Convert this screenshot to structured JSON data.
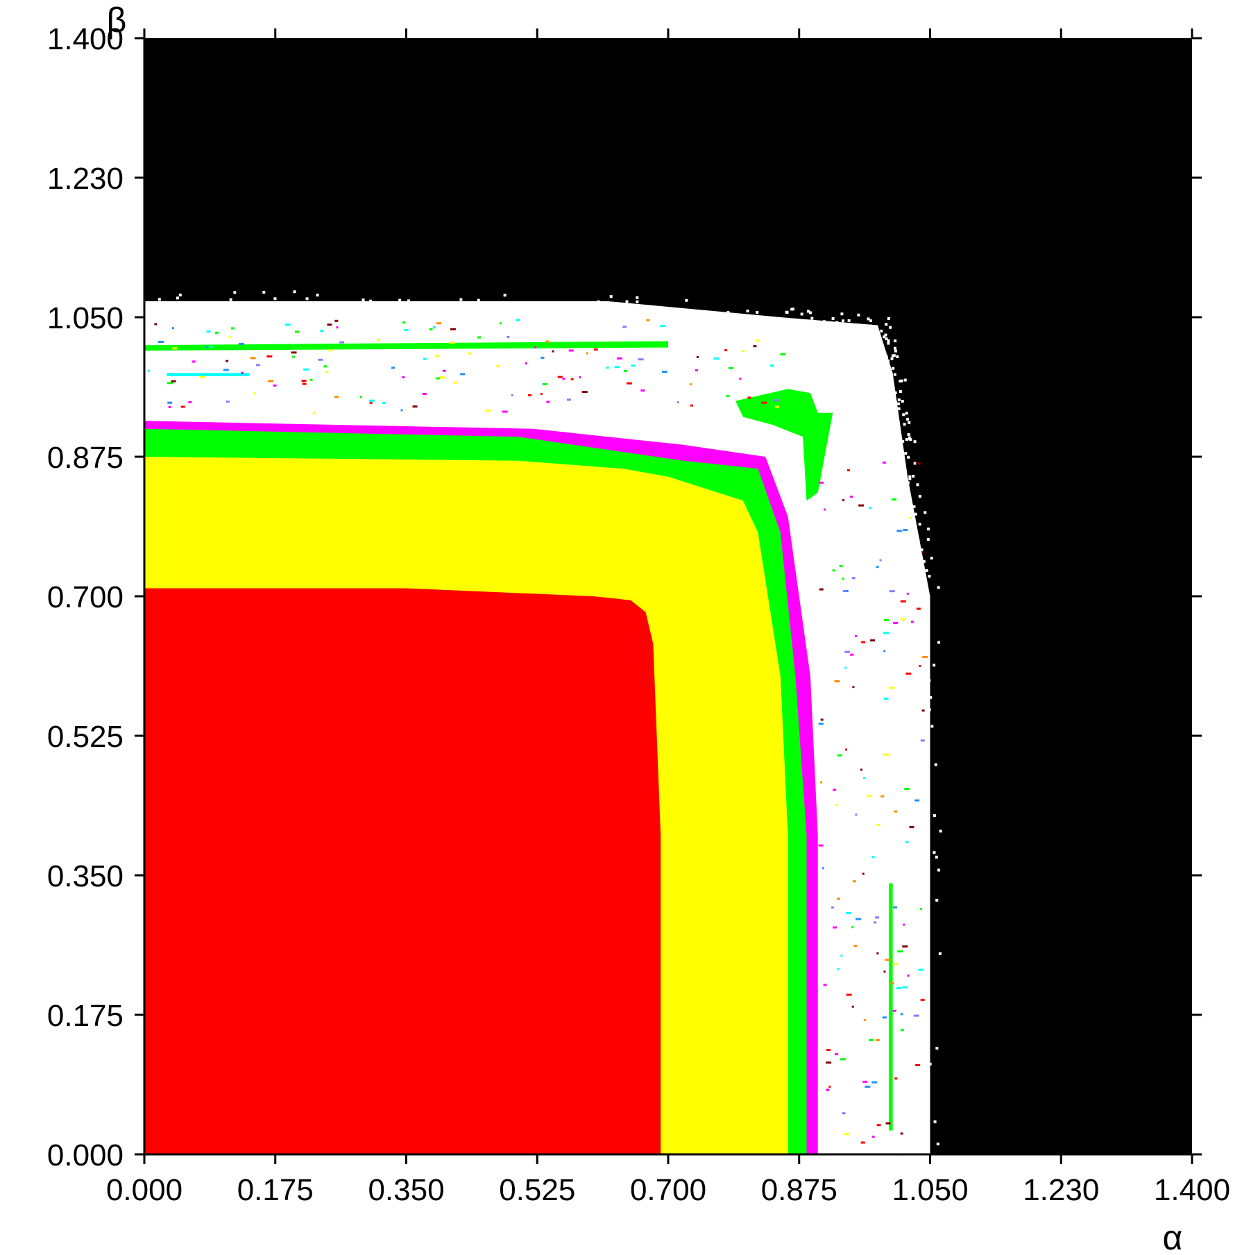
{
  "chart_data": {
    "type": "heatmap",
    "title": "",
    "xlabel": "α",
    "ylabel": "β",
    "xlim": [
      0,
      1.4
    ],
    "ylim": [
      0,
      1.4
    ],
    "xticks": [
      "0.000",
      "0.175",
      "0.350",
      "0.525",
      "0.700",
      "0.875",
      "1.050",
      "1.230",
      "1.400"
    ],
    "yticks": [
      "0.000",
      "0.175",
      "0.350",
      "0.525",
      "0.700",
      "0.875",
      "1.050",
      "1.230",
      "1.400"
    ],
    "grid": false,
    "legend": "none",
    "colors": {
      "background": "#000000",
      "outer_region": "#ffffff",
      "band_magenta": "#ff00ff",
      "band_green": "#00ff00",
      "band_yellow": "#ffff00",
      "core_red": "#ff0000",
      "scatter_palette": [
        "#00ffff",
        "#1e90ff",
        "#ff8c00",
        "#ff0000",
        "#00ff00",
        "#ffff00",
        "#ff00ff",
        "#8080ff",
        "#800000"
      ]
    },
    "regions": [
      {
        "name": "white",
        "color": "#ffffff",
        "boundary": [
          [
            0,
            1.07
          ],
          [
            0.62,
            1.07
          ],
          [
            0.85,
            1.05
          ],
          [
            0.98,
            1.04
          ],
          [
            1.0,
            0.98
          ],
          [
            1.02,
            0.85
          ],
          [
            1.05,
            0.7
          ],
          [
            1.05,
            0
          ]
        ]
      },
      {
        "name": "magenta",
        "color": "#ff00ff",
        "boundary": [
          [
            0,
            0.92
          ],
          [
            0.52,
            0.91
          ],
          [
            0.72,
            0.89
          ],
          [
            0.83,
            0.875
          ],
          [
            0.86,
            0.8
          ],
          [
            0.89,
            0.6
          ],
          [
            0.9,
            0.4
          ],
          [
            0.9,
            0
          ]
        ]
      },
      {
        "name": "green",
        "color": "#00ff00",
        "boundary": [
          [
            0,
            0.91
          ],
          [
            0.5,
            0.9
          ],
          [
            0.72,
            0.87
          ],
          [
            0.82,
            0.86
          ],
          [
            0.85,
            0.78
          ],
          [
            0.87,
            0.6
          ],
          [
            0.885,
            0.4
          ],
          [
            0.885,
            0
          ]
        ]
      },
      {
        "name": "yellow",
        "color": "#ffff00",
        "boundary": [
          [
            0,
            0.875
          ],
          [
            0.5,
            0.87
          ],
          [
            0.64,
            0.86
          ],
          [
            0.7,
            0.85
          ],
          [
            0.8,
            0.82
          ],
          [
            0.82,
            0.78
          ],
          [
            0.85,
            0.6
          ],
          [
            0.86,
            0.4
          ],
          [
            0.86,
            0
          ]
        ]
      },
      {
        "name": "red",
        "color": "#ff0000",
        "boundary": [
          [
            0,
            0.71
          ],
          [
            0.35,
            0.71
          ],
          [
            0.6,
            0.7
          ],
          [
            0.65,
            0.695
          ],
          [
            0.67,
            0.68
          ],
          [
            0.68,
            0.64
          ],
          [
            0.69,
            0.4
          ],
          [
            0.69,
            0
          ]
        ]
      }
    ],
    "features": [
      {
        "name": "green-strip-top",
        "color": "#00ff00",
        "points": [
          [
            0,
            1.015
          ],
          [
            0.7,
            1.02
          ],
          [
            0.7,
            1.012
          ],
          [
            0,
            1.008
          ]
        ]
      },
      {
        "name": "green-island",
        "color": "#00ff00",
        "points": [
          [
            0.79,
            0.945
          ],
          [
            0.86,
            0.96
          ],
          [
            0.89,
            0.955
          ],
          [
            0.9,
            0.93
          ],
          [
            0.92,
            0.93
          ],
          [
            0.9,
            0.83
          ],
          [
            0.885,
            0.82
          ],
          [
            0.88,
            0.9
          ],
          [
            0.84,
            0.915
          ],
          [
            0.8,
            0.925
          ]
        ]
      },
      {
        "name": "green-strip-right",
        "color": "#00ff00",
        "points": [
          [
            0.995,
            0.34
          ],
          [
            1.0,
            0.34
          ],
          [
            1.0,
            0.03
          ],
          [
            0.995,
            0.03
          ]
        ]
      },
      {
        "name": "cyan-line-top",
        "color": "#00ffff",
        "points": [
          [
            0.03,
            0.98
          ],
          [
            0.14,
            0.98
          ],
          [
            0.14,
            0.976
          ],
          [
            0.03,
            0.976
          ]
        ]
      }
    ]
  }
}
